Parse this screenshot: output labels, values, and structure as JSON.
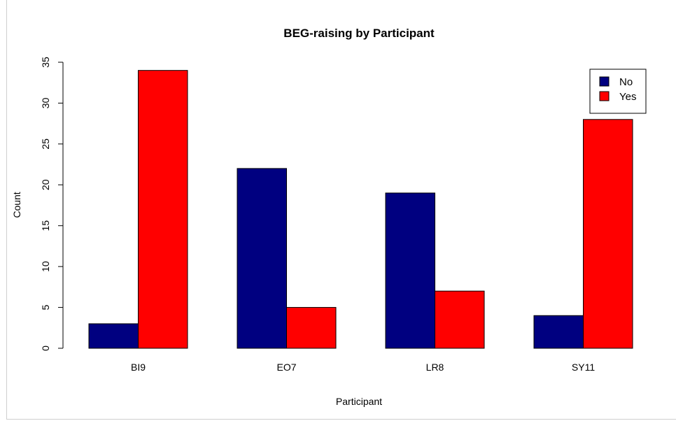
{
  "chart_data": {
    "type": "bar",
    "title": "BEG-raising by Participant",
    "xlabel": "Participant",
    "ylabel": "Count",
    "categories": [
      "BI9",
      "EO7",
      "LR8",
      "SY11"
    ],
    "series": [
      {
        "name": "No",
        "color": "#000080",
        "values": [
          3,
          22,
          19,
          4
        ]
      },
      {
        "name": "Yes",
        "color": "#ff0000",
        "values": [
          34,
          5,
          7,
          28
        ]
      }
    ],
    "ylim": [
      0,
      35
    ],
    "yticks": [
      "0",
      "5",
      "10",
      "15",
      "20",
      "25",
      "30",
      "35"
    ],
    "legend_position": "top-right",
    "grid": false
  }
}
